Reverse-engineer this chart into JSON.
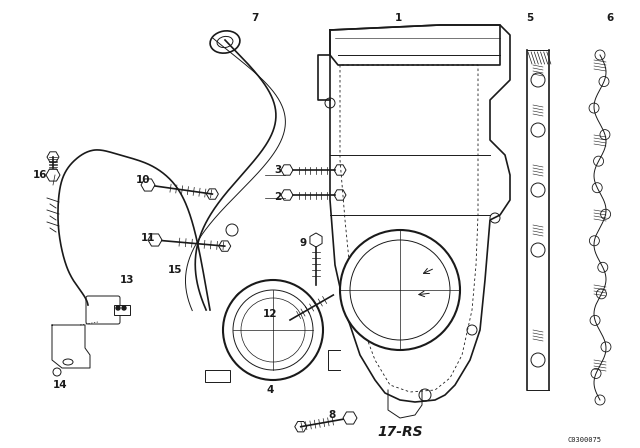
{
  "bg_color": "#ffffff",
  "fig_width": 6.4,
  "fig_height": 4.48,
  "dpi": 100,
  "watermark": "C0300075",
  "part_number_label": "17-RS",
  "line_color": "#1a1a1a",
  "label_fontsize": 7.5,
  "part_label_fontsize": 10
}
